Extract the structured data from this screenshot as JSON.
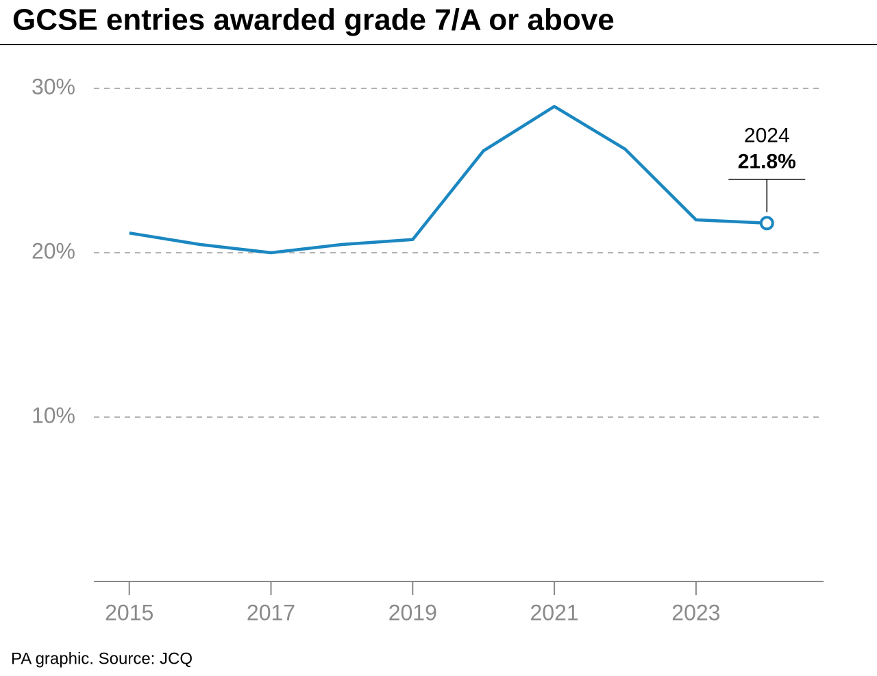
{
  "chart_data": {
    "type": "line",
    "title": "GCSE entries awarded grade 7/A or above",
    "source": "PA graphic. Source: JCQ",
    "x": [
      2015,
      2016,
      2017,
      2018,
      2019,
      2020,
      2021,
      2022,
      2023,
      2024
    ],
    "series": [
      {
        "color": "#1b87c1",
        "values": [
          21.2,
          20.5,
          20.0,
          20.5,
          20.8,
          26.2,
          28.9,
          26.3,
          22.0,
          21.8
        ],
        "value_labels": [
          null,
          null,
          null,
          null,
          null,
          null,
          null,
          null,
          null,
          "21.8%"
        ]
      }
    ],
    "xlim": [
      2014.5,
      2024.8
    ],
    "xticks": [
      2015,
      2017,
      2019,
      2021,
      2023
    ],
    "ylim": [
      0,
      30
    ],
    "yticks": [
      {
        "value": 10,
        "label": "10%"
      },
      {
        "value": 20,
        "label": "20%"
      },
      {
        "value": 30,
        "label": "30%"
      }
    ],
    "grid": true
  }
}
